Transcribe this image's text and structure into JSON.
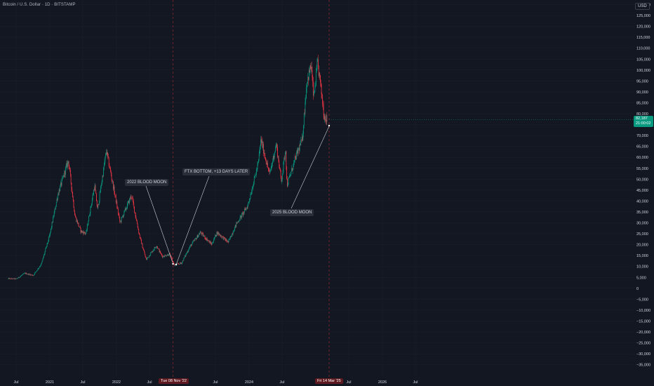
{
  "header": {
    "title": "Bitcoin / U.S. Dollar · 1D · BITSTAMP",
    "currency": "USD"
  },
  "price_label": {
    "price": "82,187",
    "countdown": "21:00:02"
  },
  "annotations": {
    "blood_moon_2022": "2022 BLOOD MOON",
    "ftx_bottom": "FTX BOTTOM, +13 DAYS LATER",
    "blood_moon_2025": "2025 BLOOD MOON"
  },
  "date_labels": {
    "first": "Tue 08 Nov '22",
    "second": "Fri 14 Mar '25"
  },
  "colors": {
    "background": "#131722",
    "up": "#089981",
    "down": "#f23645",
    "event_line": "#b22833",
    "price_label_bg": "#089981"
  },
  "chart_data": {
    "type": "candlestick",
    "symbol": "Bitcoin / U.S. Dollar",
    "interval": "1D",
    "exchange": "BITSTAMP",
    "x_ticks": [
      "Jul",
      "2021",
      "Jul",
      "2022",
      "Jul",
      "Jul",
      "2024",
      "Jul",
      "Jul",
      "2026",
      "Jul"
    ],
    "y_ticks": [
      "130,000",
      "125,000",
      "120,000",
      "115,000",
      "110,000",
      "105,000",
      "100,000",
      "95,000",
      "90,000",
      "85,000",
      "80,000",
      "75,000",
      "70,000",
      "65,000",
      "60,000",
      "55,000",
      "50,000",
      "45,000",
      "40,000",
      "35,000",
      "30,000",
      "25,000",
      "20,000",
      "15,000",
      "10,000",
      "5,000",
      "0",
      "−5,000",
      "−10,000",
      "−15,000",
      "−20,000",
      "−25,000",
      "−30,000",
      "−35,000"
    ],
    "ylim": [
      -35000,
      130000
    ],
    "last_price": 82187,
    "series": [
      {
        "points": [
          [
            "2020-05-15",
            9300
          ],
          [
            "2020-07-01",
            9200
          ],
          [
            "2020-08-15",
            11800
          ],
          [
            "2020-10-01",
            10800
          ],
          [
            "2020-11-15",
            16000
          ],
          [
            "2020-12-31",
            29000
          ],
          [
            "2021-02-15",
            48000
          ],
          [
            "2021-04-14",
            63500
          ],
          [
            "2021-05-20",
            38000
          ],
          [
            "2021-06-22",
            31000
          ],
          [
            "2021-07-20",
            30000
          ],
          [
            "2021-09-06",
            52000
          ],
          [
            "2021-09-22",
            41000
          ],
          [
            "2021-11-10",
            68000
          ],
          [
            "2021-12-31",
            46000
          ],
          [
            "2022-01-24",
            35000
          ],
          [
            "2022-03-29",
            47500
          ],
          [
            "2022-05-12",
            29000
          ],
          [
            "2022-06-18",
            18000
          ],
          [
            "2022-08-14",
            24500
          ],
          [
            "2022-09-15",
            19500
          ],
          [
            "2022-10-25",
            20500
          ],
          [
            "2022-11-08",
            18000
          ],
          [
            "2022-11-21",
            15500
          ],
          [
            "2022-12-31",
            16500
          ],
          [
            "2023-02-15",
            24000
          ],
          [
            "2023-04-14",
            30500
          ],
          [
            "2023-06-15",
            25000
          ],
          [
            "2023-07-15",
            30500
          ],
          [
            "2023-09-15",
            26000
          ],
          [
            "2023-10-31",
            34500
          ],
          [
            "2023-12-31",
            42500
          ],
          [
            "2024-02-28",
            62000
          ],
          [
            "2024-03-14",
            73000
          ],
          [
            "2024-05-01",
            57000
          ],
          [
            "2024-06-07",
            71000
          ],
          [
            "2024-07-05",
            54000
          ],
          [
            "2024-07-29",
            69000
          ],
          [
            "2024-08-05",
            52000
          ],
          [
            "2024-09-27",
            66000
          ],
          [
            "2024-10-29",
            73000
          ],
          [
            "2024-11-22",
            99000
          ],
          [
            "2024-12-17",
            107000
          ],
          [
            "2024-12-31",
            92000
          ],
          [
            "2025-01-21",
            108000
          ],
          [
            "2025-02-01",
            102000
          ],
          [
            "2025-02-27",
            84000
          ],
          [
            "2025-03-14",
            82187
          ]
        ]
      }
    ]
  }
}
